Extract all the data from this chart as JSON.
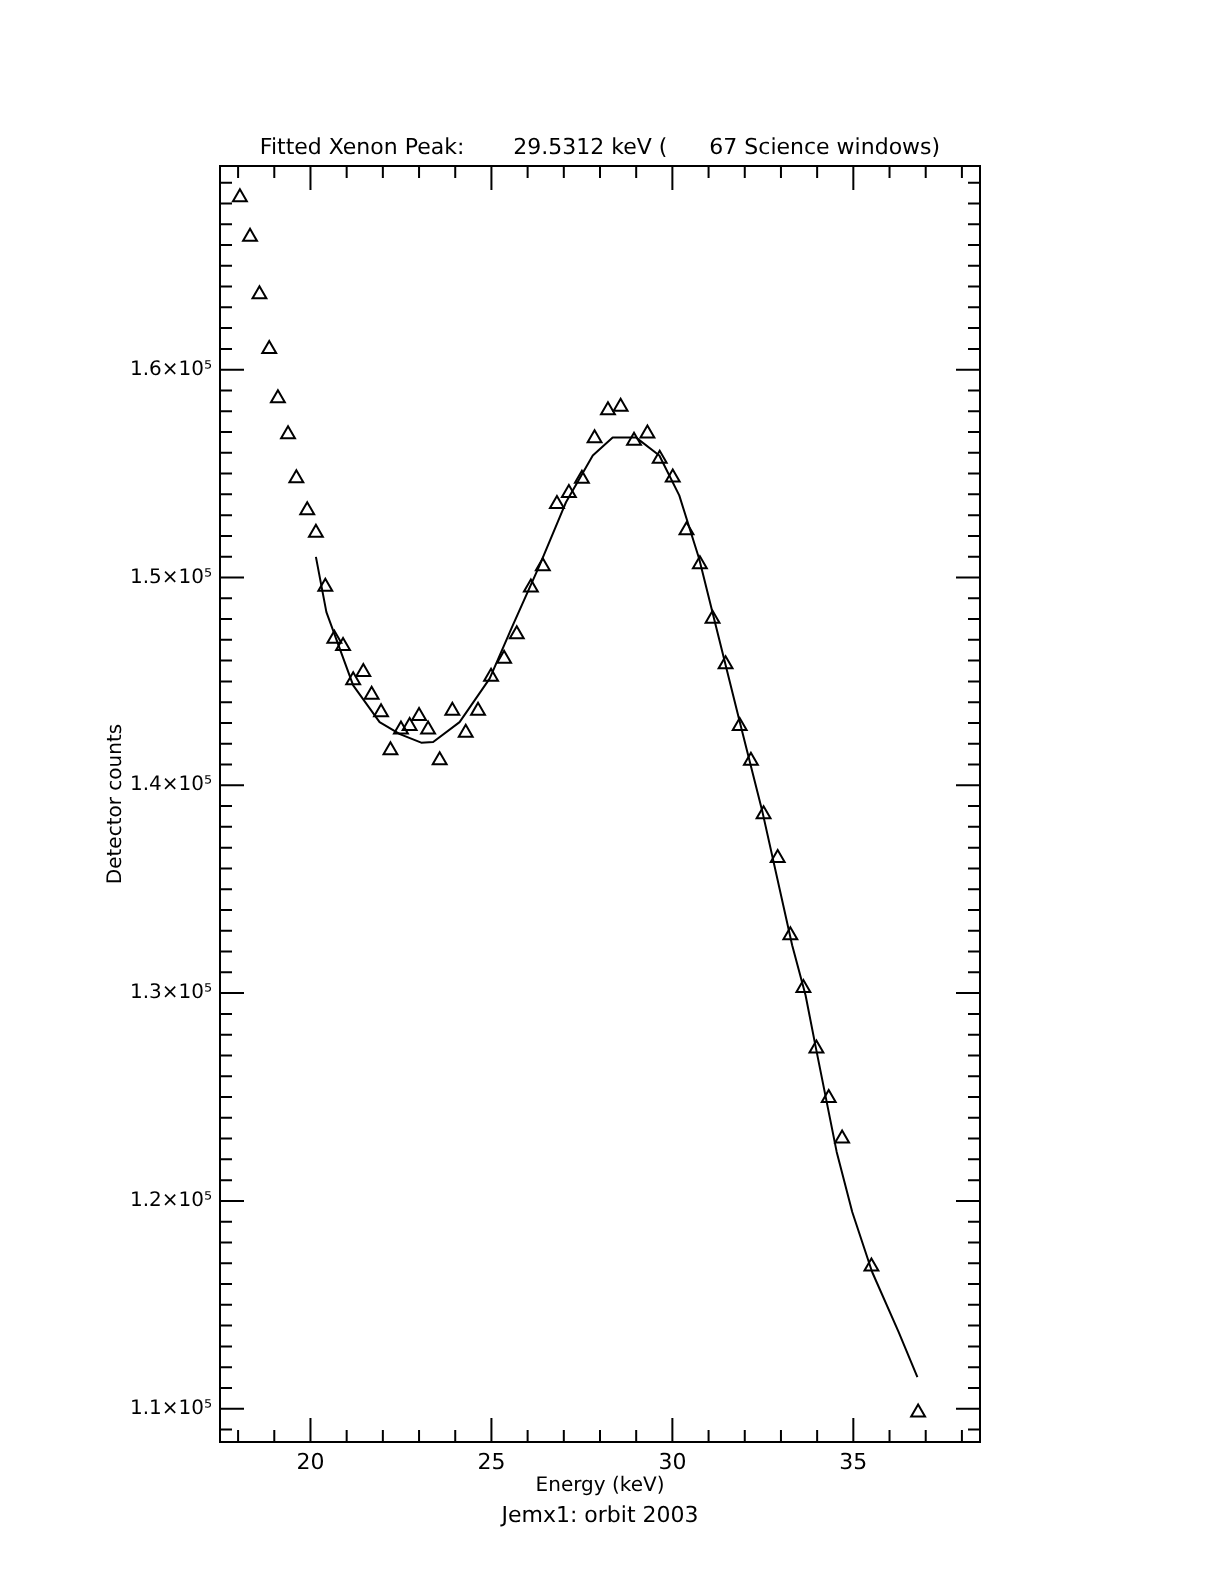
{
  "chart_data": {
    "type": "scatter",
    "title": "Fitted Xenon Peak:       29.5312 keV (      67 Science windows)",
    "xlabel": "Energy (keV)",
    "ylabel": "Detector counts",
    "annotations": [
      "Jemx1: orbit 2003"
    ],
    "xlim": [
      17.5,
      38.5
    ],
    "xticks": [
      {
        "value": 18,
        "label": null
      },
      {
        "value": 19,
        "label": null
      },
      20,
      {
        "value": 21,
        "label": null
      },
      {
        "value": 22,
        "label": null
      },
      {
        "value": 23,
        "label": null
      },
      {
        "value": 24,
        "label": null
      },
      25,
      {
        "value": 26,
        "label": null
      },
      {
        "value": 27,
        "label": null
      },
      {
        "value": 28,
        "label": null
      },
      {
        "value": 29,
        "label": null
      },
      30,
      {
        "value": 31,
        "label": null
      },
      {
        "value": 32,
        "label": null
      },
      {
        "value": 33,
        "label": null
      },
      {
        "value": 34,
        "label": null
      },
      35,
      {
        "value": 36,
        "label": null
      },
      {
        "value": 37,
        "label": null
      },
      {
        "value": 38,
        "label": null
      }
    ],
    "ylim": [
      108400,
      169800
    ],
    "yticks": [
      {
        "value": 109000,
        "label": null
      },
      {
        "value": 110000,
        "label": "1.1×10⁵"
      },
      {
        "value": 111000,
        "label": null
      },
      {
        "value": 112000,
        "label": null
      },
      {
        "value": 113000,
        "label": null
      },
      {
        "value": 114000,
        "label": null
      },
      {
        "value": 115000,
        "label": null
      },
      {
        "value": 116000,
        "label": null
      },
      {
        "value": 117000,
        "label": null
      },
      {
        "value": 118000,
        "label": null
      },
      {
        "value": 119000,
        "label": null
      },
      {
        "value": 120000,
        "label": "1.2×10⁵"
      },
      {
        "value": 121000,
        "label": null
      },
      {
        "value": 122000,
        "label": null
      },
      {
        "value": 123000,
        "label": null
      },
      {
        "value": 124000,
        "label": null
      },
      {
        "value": 125000,
        "label": null
      },
      {
        "value": 126000,
        "label": null
      },
      {
        "value": 127000,
        "label": null
      },
      {
        "value": 128000,
        "label": null
      },
      {
        "value": 129000,
        "label": null
      },
      {
        "value": 130000,
        "label": "1.3×10⁵"
      },
      {
        "value": 131000,
        "label": null
      },
      {
        "value": 132000,
        "label": null
      },
      {
        "value": 133000,
        "label": null
      },
      {
        "value": 134000,
        "label": null
      },
      {
        "value": 135000,
        "label": null
      },
      {
        "value": 136000,
        "label": null
      },
      {
        "value": 137000,
        "label": null
      },
      {
        "value": 138000,
        "label": null
      },
      {
        "value": 139000,
        "label": null
      },
      {
        "value": 140000,
        "label": "1.4×10⁵"
      },
      {
        "value": 141000,
        "label": null
      },
      {
        "value": 142000,
        "label": null
      },
      {
        "value": 143000,
        "label": null
      },
      {
        "value": 144000,
        "label": null
      },
      {
        "value": 145000,
        "label": null
      },
      {
        "value": 146000,
        "label": null
      },
      {
        "value": 147000,
        "label": null
      },
      {
        "value": 148000,
        "label": null
      },
      {
        "value": 149000,
        "label": null
      },
      {
        "value": 150000,
        "label": "1.5×10⁵"
      },
      {
        "value": 151000,
        "label": null
      },
      {
        "value": 152000,
        "label": null
      },
      {
        "value": 153000,
        "label": null
      },
      {
        "value": 154000,
        "label": null
      },
      {
        "value": 155000,
        "label": null
      },
      {
        "value": 156000,
        "label": null
      },
      {
        "value": 157000,
        "label": null
      },
      {
        "value": 158000,
        "label": null
      },
      {
        "value": 159000,
        "label": null
      },
      {
        "value": 160000,
        "label": "1.6×10⁵"
      },
      {
        "value": 161000,
        "label": null
      },
      {
        "value": 162000,
        "label": null
      },
      {
        "value": 163000,
        "label": null
      },
      {
        "value": 164000,
        "label": null
      },
      {
        "value": 165000,
        "label": null
      },
      {
        "value": 166000,
        "label": null
      },
      {
        "value": 167000,
        "label": null
      },
      {
        "value": 168000,
        "label": null
      },
      {
        "value": 169000,
        "label": null
      }
    ],
    "grid": false,
    "legend": false,
    "series": [
      {
        "color": "#000000",
        "marker": "triangle",
        "x": [
          18.05,
          18.33,
          18.59,
          18.86,
          19.1,
          19.38,
          19.61,
          19.91,
          20.15,
          20.41,
          20.66,
          20.9,
          21.18,
          21.46,
          21.69,
          21.95,
          22.21,
          22.5,
          22.74,
          23.0,
          23.25,
          23.57,
          23.92,
          24.29,
          24.63,
          24.99,
          25.35,
          25.7,
          26.09,
          26.42,
          26.81,
          27.14,
          27.5,
          27.85,
          28.22,
          28.57,
          28.94,
          29.31,
          29.65,
          30.01,
          30.39,
          30.76,
          31.11,
          31.47,
          31.86,
          32.17,
          32.52,
          32.91,
          33.26,
          33.62,
          33.98,
          34.32,
          34.69,
          35.5,
          36.79
        ],
        "values": [
          168300,
          166390,
          163630,
          161000,
          158620,
          156890,
          154780,
          153240,
          152150,
          149550,
          147050,
          146700,
          145060,
          145450,
          144360,
          143520,
          141690,
          142690,
          142850,
          143330,
          142690,
          141210,
          143590,
          142530,
          143590,
          145220,
          146090,
          147270,
          149520,
          150540,
          153530,
          154070,
          154750,
          156700,
          158050,
          158210,
          156580,
          156930,
          155710,
          154810,
          152270,
          150640,
          148010,
          145830,
          142850,
          141180,
          138610,
          136500,
          132790,
          130250,
          127330,
          124950,
          123000,
          116840,
          109820
        ]
      },
      {
        "type": "line",
        "color": "#000000",
        "marker": "none",
        "line_style": "solid",
        "x": [
          20.15,
          20.44,
          21.18,
          21.91,
          22.47,
          23.06,
          23.39,
          24.12,
          24.95,
          25.59,
          26.33,
          27.06,
          27.8,
          28.35,
          28.99,
          29.64,
          30.19,
          30.74,
          31.29,
          31.84,
          32.49,
          33.31,
          33.68,
          33.95,
          34.54,
          34.97,
          35.52,
          36.25,
          36.77
        ],
        "values": [
          150990,
          148330,
          144810,
          143040,
          142460,
          142050,
          142080,
          143040,
          145130,
          147700,
          150580,
          153620,
          155870,
          156740,
          156740,
          155870,
          153950,
          150900,
          147050,
          143200,
          138710,
          132300,
          129900,
          127500,
          122360,
          119470,
          116580,
          113700,
          111520
        ]
      }
    ]
  }
}
